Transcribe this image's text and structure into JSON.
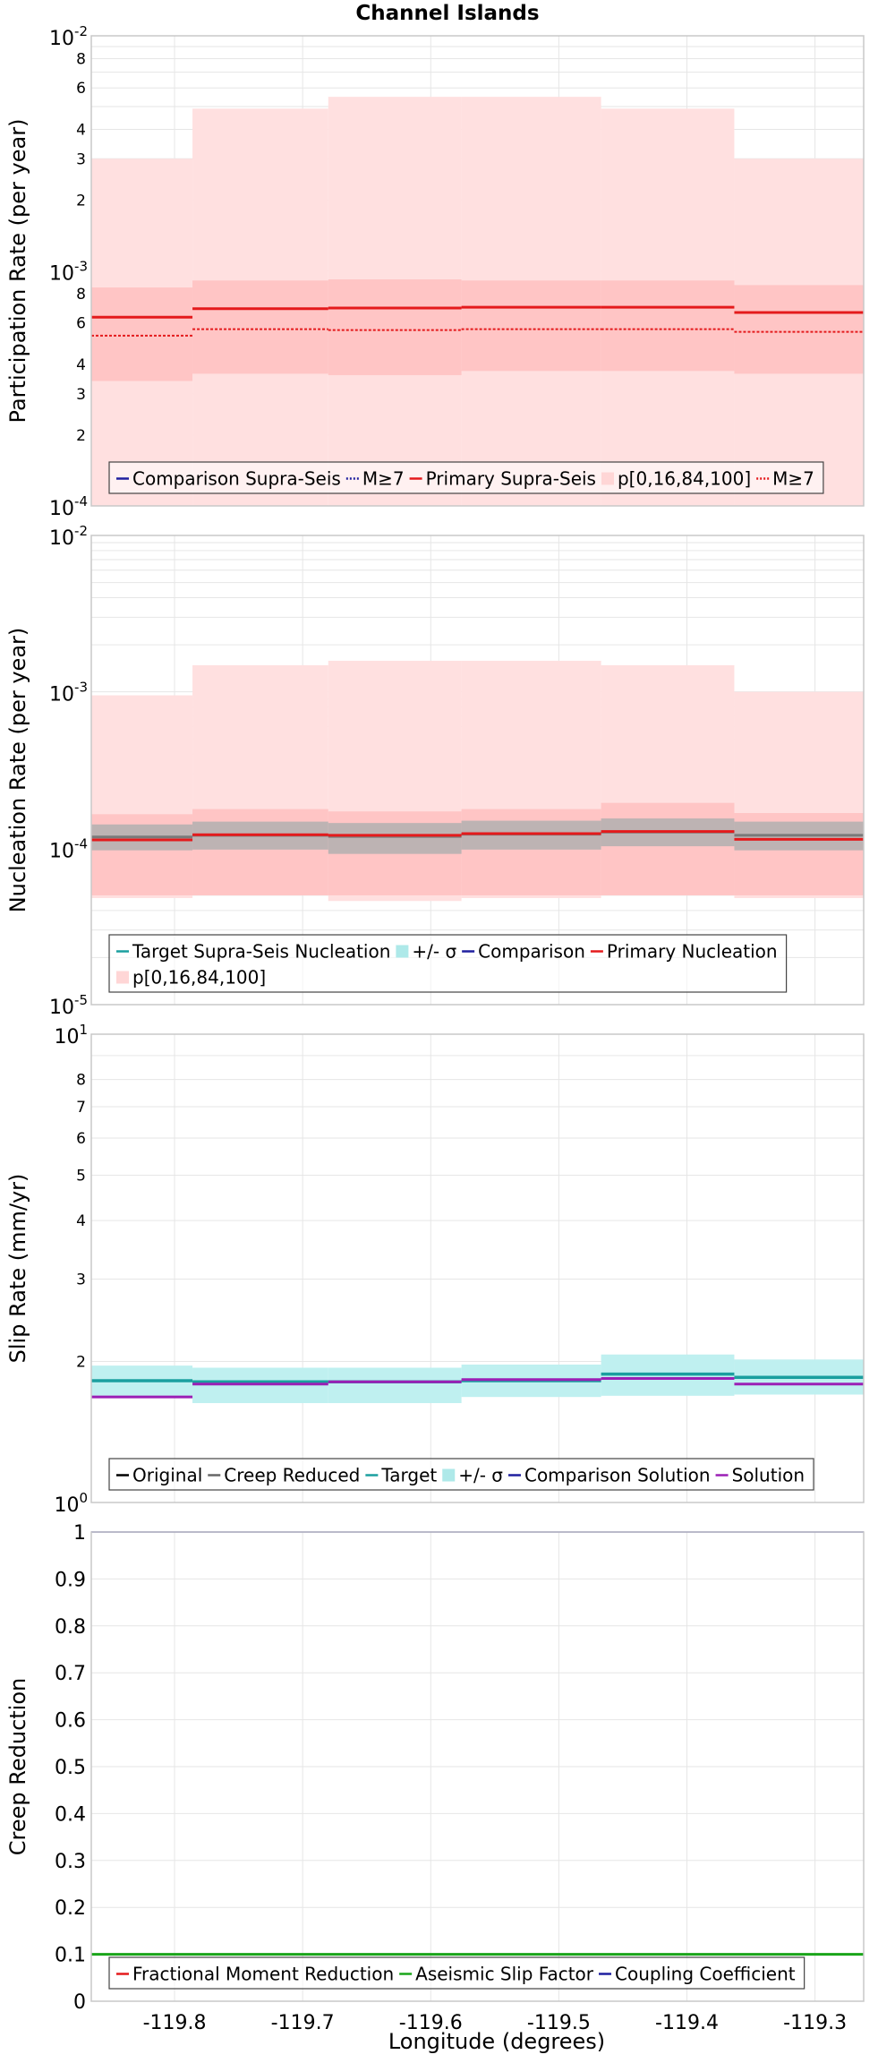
{
  "title": "Channel Islands",
  "x_axis": {
    "label": "Longitude (degrees)",
    "range": [
      -119.865,
      -119.262
    ],
    "ticks": [
      -119.8,
      -119.7,
      -119.6,
      -119.5,
      -119.4,
      -119.3
    ],
    "tick_labels": [
      "-119.8",
      "-119.7",
      "-119.6",
      "-119.5",
      "-119.4",
      "-119.3"
    ]
  },
  "colors": {
    "primary": "#e41a1c",
    "primary_band": "#ffc5c5",
    "comparison": "#1f1f9f",
    "gray_band": "#a9a9a9",
    "target": "#1a9f9f",
    "target_band": "#aee9e9",
    "solution": "#9b1fb5",
    "original": "#000000",
    "creep_reduced": "#666666",
    "aseismic": "#1aa51a",
    "coupling": "#1f1f9f",
    "grid": "#e6e6e6",
    "frame": "#c8c8c8"
  },
  "chart_data": [
    {
      "type": "line",
      "name": "participation",
      "ylabel": "Participation Rate (per year)",
      "yscale": "log",
      "ylim": [
        0.0001,
        0.01
      ],
      "y_major_ticks": [
        {
          "value": 0.0001,
          "base": "10",
          "exp": "-4"
        },
        {
          "value": 0.001,
          "base": "10",
          "exp": "-3"
        },
        {
          "value": 0.01,
          "base": "10",
          "exp": "-2"
        }
      ],
      "y_minor_ticks": [
        {
          "value": 0.0002,
          "label": "2"
        },
        {
          "value": 0.0003,
          "label": "3"
        },
        {
          "value": 0.0004,
          "label": "4"
        },
        {
          "value": 0.0006,
          "label": "6"
        },
        {
          "value": 0.0008,
          "label": "8"
        },
        {
          "value": 0.002,
          "label": "2"
        },
        {
          "value": 0.003,
          "label": "3"
        },
        {
          "value": 0.004,
          "label": "4"
        },
        {
          "value": 0.006,
          "label": "6"
        },
        {
          "value": 0.008,
          "label": "8"
        }
      ],
      "segment_edges": [
        -119.865,
        -119.786,
        -119.68,
        -119.576,
        -119.467,
        -119.363,
        -119.262
      ],
      "bands": [
        {
          "lower": [
            0.0001,
            0.0001,
            0.0001,
            0.0001,
            0.0001,
            0.0001
          ],
          "upper": [
            0.003,
            0.0049,
            0.0055,
            0.0055,
            0.0049,
            0.003
          ],
          "color": "#ffe0e0"
        },
        {
          "lower": [
            0.00034,
            0.000365,
            0.00036,
            0.000375,
            0.000375,
            0.000365
          ],
          "upper": [
            0.00085,
            0.00091,
            0.00092,
            0.00091,
            0.00091,
            0.00087
          ],
          "color": "#ffc5c5"
        }
      ],
      "series": [
        {
          "name": "M≥7",
          "style": "dashed-red",
          "values": [
            0.00053,
            0.000565,
            0.00056,
            0.000565,
            0.000565,
            0.00055
          ]
        },
        {
          "name": "Primary Supra-Seis",
          "style": "solid-red",
          "values": [
            0.000635,
            0.00069,
            0.000695,
            0.0007,
            0.0007,
            0.000665
          ]
        }
      ],
      "legend": {
        "position": "bottom",
        "rows": [
          [
            {
              "label": "Comparison Supra-Seis",
              "symbol": "line-blue"
            },
            {
              "label": "M≥7",
              "symbol": "dotted-blue"
            },
            {
              "label": "Primary Supra-Seis",
              "symbol": "line-red"
            },
            {
              "label": "p[0,16,84,100]",
              "symbol": "box-pink"
            },
            {
              "label": "M≥7",
              "symbol": "dotted-red"
            }
          ]
        ]
      }
    },
    {
      "type": "line",
      "name": "nucleation",
      "ylabel": "Nucleation Rate (per year)",
      "yscale": "log",
      "ylim": [
        1e-05,
        0.01
      ],
      "y_major_ticks": [
        {
          "value": 1e-05,
          "base": "10",
          "exp": "-5"
        },
        {
          "value": 0.0001,
          "base": "10",
          "exp": "-4"
        },
        {
          "value": 0.001,
          "base": "10",
          "exp": "-3"
        },
        {
          "value": 0.01,
          "base": "10",
          "exp": "-2"
        }
      ],
      "y_minor_ticks": [],
      "segment_edges": [
        -119.865,
        -119.786,
        -119.68,
        -119.576,
        -119.467,
        -119.363,
        -119.262
      ],
      "bands": [
        {
          "lower": [
            4.8e-05,
            5e-05,
            4.6e-05,
            4.8e-05,
            5e-05,
            4.8e-05
          ],
          "upper": [
            0.00095,
            0.00148,
            0.00158,
            0.00158,
            0.00148,
            0.001
          ],
          "color": "#ffe0e0"
        },
        {
          "lower": [
            5e-05,
            5e-05,
            5e-05,
            5e-05,
            5e-05,
            5e-05
          ],
          "upper": [
            0.000165,
            0.000178,
            0.000172,
            0.000178,
            0.000195,
            0.000168
          ],
          "color": "#ffc5c5"
        },
        {
          "lower": [
            9.7e-05,
            9.8e-05,
            9.2e-05,
            9.8e-05,
            0.000103,
            9.7e-05
          ],
          "upper": [
            0.000142,
            0.000148,
            0.000145,
            0.00015,
            0.000155,
            0.000148
          ],
          "color": "#bdb3b3"
        }
      ],
      "series": [
        {
          "name": "Target Supra-Seis Nucleation",
          "style": "solid-gray",
          "values": [
            0.000118,
            0.000121,
            0.000119,
            0.000123,
            0.000127,
            0.000121
          ]
        },
        {
          "name": "Primary Nucleation",
          "style": "solid-red",
          "values": [
            0.000113,
            0.000122,
            0.000121,
            0.000124,
            0.000128,
            0.000114
          ]
        }
      ],
      "legend": {
        "position": "bottom",
        "rows": [
          [
            {
              "label": "Target Supra-Seis Nucleation",
              "symbol": "line-teal"
            },
            {
              "label": "+/- σ",
              "symbol": "box-teal"
            },
            {
              "label": "Comparison",
              "symbol": "line-blue"
            },
            {
              "label": "Primary Nucleation",
              "symbol": "line-red"
            }
          ],
          [
            {
              "label": "p[0,16,84,100]",
              "symbol": "box-pink"
            }
          ]
        ]
      }
    },
    {
      "type": "line",
      "name": "slip",
      "ylabel": "Slip Rate (mm/yr)",
      "yscale": "log",
      "ylim": [
        1,
        10
      ],
      "y_major_ticks": [
        {
          "value": 1,
          "base": "10",
          "exp": "0"
        },
        {
          "value": 10,
          "base": "10",
          "exp": "1"
        }
      ],
      "y_minor_ticks": [
        {
          "value": 2,
          "label": "2"
        },
        {
          "value": 3,
          "label": "3"
        },
        {
          "value": 4,
          "label": "4"
        },
        {
          "value": 5,
          "label": "5"
        },
        {
          "value": 6,
          "label": "6"
        },
        {
          "value": 7,
          "label": "7"
        },
        {
          "value": 8,
          "label": "8"
        }
      ],
      "segment_edges": [
        -119.865,
        -119.786,
        -119.68,
        -119.576,
        -119.467,
        -119.363,
        -119.262
      ],
      "bands": [
        {
          "lower": [
            1.69,
            1.63,
            1.63,
            1.68,
            1.69,
            1.7
          ],
          "upper": [
            1.96,
            1.94,
            1.94,
            1.97,
            2.07,
            2.02
          ],
          "color": "#bff0f0"
        }
      ],
      "series": [
        {
          "name": "Target",
          "style": "solid-teal",
          "values": [
            1.82,
            1.81,
            1.81,
            1.82,
            1.88,
            1.85
          ]
        },
        {
          "name": "Solution",
          "style": "solid-purple",
          "values": [
            1.68,
            1.79,
            1.81,
            1.83,
            1.84,
            1.79
          ]
        }
      ],
      "legend": {
        "position": "bottom",
        "rows": [
          [
            {
              "label": "Original",
              "symbol": "line-black"
            },
            {
              "label": "Creep Reduced",
              "symbol": "line-gray"
            },
            {
              "label": "Target",
              "symbol": "line-teal"
            },
            {
              "label": "+/- σ",
              "symbol": "box-teal"
            },
            {
              "label": "Comparison Solution",
              "symbol": "line-blue"
            },
            {
              "label": "Solution",
              "symbol": "line-purple"
            }
          ]
        ]
      }
    },
    {
      "type": "line",
      "name": "creep",
      "ylabel": "Creep Reduction",
      "yscale": "linear",
      "ylim": [
        0,
        1
      ],
      "y_linear_ticks": [
        {
          "value": 0,
          "label": "0"
        },
        {
          "value": 0.1,
          "label": "0.1"
        },
        {
          "value": 0.2,
          "label": "0.2"
        },
        {
          "value": 0.3,
          "label": "0.3"
        },
        {
          "value": 0.4,
          "label": "0.4"
        },
        {
          "value": 0.5,
          "label": "0.5"
        },
        {
          "value": 0.6,
          "label": "0.6"
        },
        {
          "value": 0.7,
          "label": "0.7"
        },
        {
          "value": 0.8,
          "label": "0.8"
        },
        {
          "value": 0.9,
          "label": "0.9"
        },
        {
          "value": 1,
          "label": "1"
        }
      ],
      "segment_edges": [
        -119.865,
        -119.262
      ],
      "bands": [],
      "series": [
        {
          "name": "Aseismic Slip Factor",
          "style": "solid-green",
          "values": [
            0.1
          ]
        },
        {
          "name": "Coupling Coefficient",
          "style": "solid-navy",
          "values": [
            1.0
          ]
        }
      ],
      "legend": {
        "position": "bottom",
        "rows": [
          [
            {
              "label": "Fractional Moment Reduction",
              "symbol": "line-red"
            },
            {
              "label": "Aseismic Slip Factor",
              "symbol": "line-green"
            },
            {
              "label": "Coupling Coefficient",
              "symbol": "line-navy"
            }
          ]
        ]
      }
    }
  ]
}
